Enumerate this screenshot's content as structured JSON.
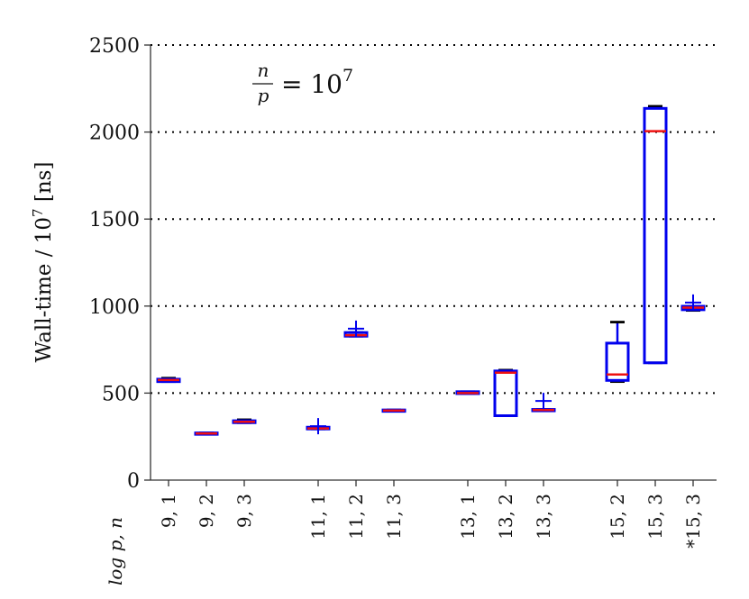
{
  "chart_data": {
    "type": "box",
    "title": "",
    "xlabel": "log p, n",
    "ylabel": "Wall-time / 10^7 [ns]",
    "ylabel_parts": {
      "main": "Wall-time / 10",
      "exp": "7",
      "unit": " [ns]"
    },
    "annotation": {
      "lhs_num": "n",
      "lhs_den": "p",
      "eq": "= 10",
      "exp": "7"
    },
    "ylim": [
      0,
      2500
    ],
    "yticks": [
      0,
      500,
      1000,
      1500,
      2000,
      2500
    ],
    "grid": {
      "y": true,
      "style": "dotted"
    },
    "colors": {
      "box": "#0000ee",
      "median": "#ee1111",
      "whisker_cap": "#000000",
      "outlier": "#0000ee"
    },
    "categories": [
      "9, 1",
      "9, 2",
      "9, 3",
      "11, 1",
      "11, 2",
      "11, 3",
      "13, 1",
      "13, 2",
      "13, 3",
      "15, 2",
      "15, 3",
      "*15, 3"
    ],
    "groups": [
      0,
      0,
      0,
      1,
      1,
      1,
      2,
      2,
      2,
      3,
      3,
      3
    ],
    "boxes": [
      {
        "q1": 566,
        "median": 575,
        "q3": 580,
        "wlow": 566,
        "whigh": 586,
        "outliers": []
      },
      {
        "q1": 265,
        "median": 268,
        "q3": 271,
        "wlow": 265,
        "whigh": 271,
        "outliers": []
      },
      {
        "q1": 330,
        "median": 335,
        "q3": 341,
        "wlow": 330,
        "whigh": 347,
        "outliers": []
      },
      {
        "q1": 294,
        "median": 297,
        "q3": 304,
        "wlow": 294,
        "whigh": 304,
        "outliers": [
          310
        ]
      },
      {
        "q1": 827,
        "median": 833,
        "q3": 848,
        "wlow": 827,
        "whigh": 848,
        "outliers": [
          870
        ]
      },
      {
        "q1": 397,
        "median": 400,
        "q3": 403,
        "wlow": 397,
        "whigh": 403,
        "outliers": []
      },
      {
        "q1": 497,
        "median": 500,
        "q3": 508,
        "wlow": 497,
        "whigh": 508,
        "outliers": []
      },
      {
        "q1": 370,
        "median": 617,
        "q3": 627,
        "wlow": 370,
        "whigh": 632,
        "outliers": []
      },
      {
        "q1": 400,
        "median": 403,
        "q3": 406,
        "wlow": 400,
        "whigh": 406,
        "outliers": [
          455
        ]
      },
      {
        "q1": 573,
        "median": 607,
        "q3": 787,
        "wlow": 566,
        "whigh": 908,
        "outliers": []
      },
      {
        "q1": 674,
        "median": 2005,
        "q3": 2136,
        "wlow": 674,
        "whigh": 2148,
        "outliers": []
      },
      {
        "q1": 979,
        "median": 991,
        "q3": 999,
        "wlow": 975,
        "whigh": 999,
        "outliers": [
          1020
        ]
      }
    ]
  }
}
